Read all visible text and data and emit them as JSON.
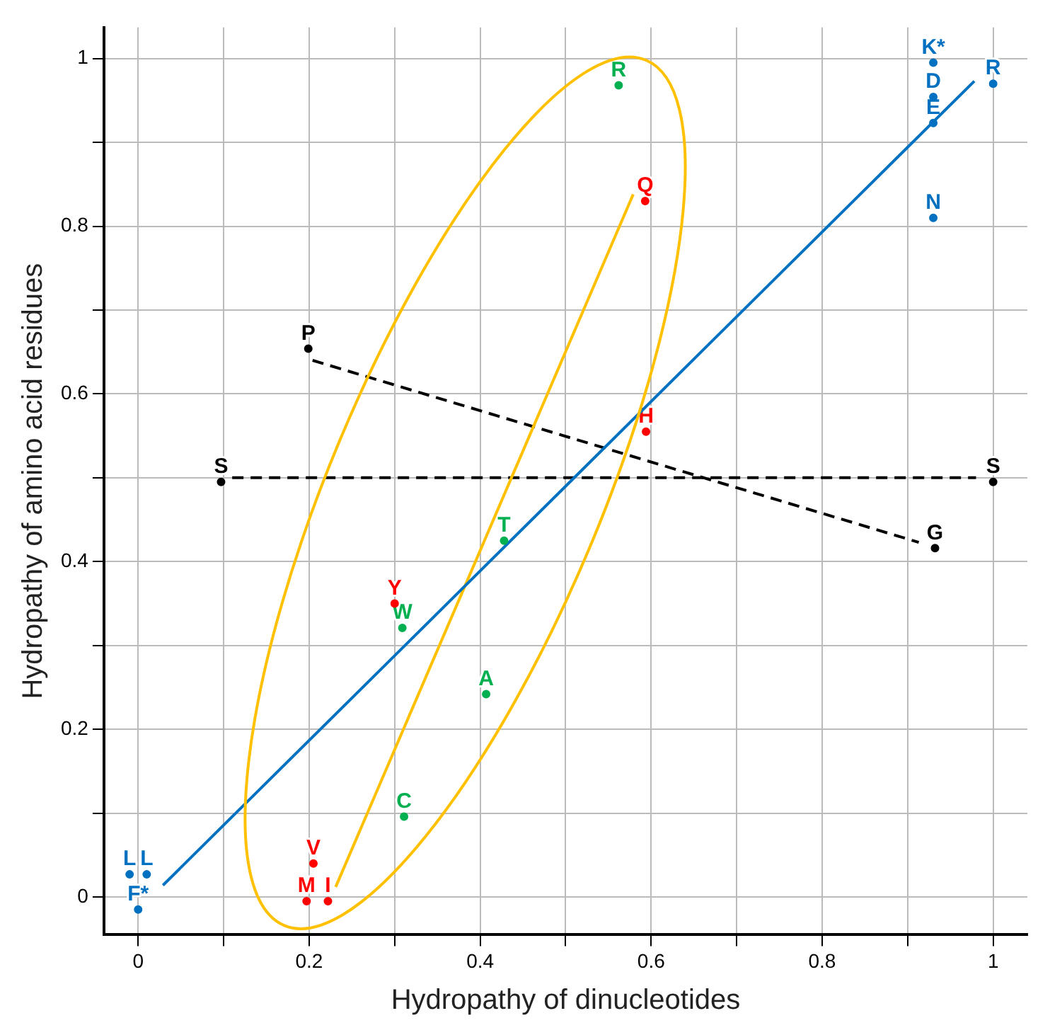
{
  "chart_data": {
    "type": "scatter",
    "xlabel": "Hydropathy of dinucleotides",
    "ylabel": "Hydropathy of amino acid residues",
    "xlim": [
      -0.04,
      1.04
    ],
    "ylim": [
      -0.045,
      1.037
    ],
    "xticks": [
      0,
      {
        "value": 0.1,
        "label": null
      },
      0.2,
      {
        "value": 0.3,
        "label": null
      },
      0.4,
      {
        "value": 0.5,
        "label": null
      },
      0.6,
      {
        "value": 0.7,
        "label": null
      },
      0.8,
      {
        "value": 0.9,
        "label": null
      },
      1
    ],
    "yticks": [
      0,
      {
        "value": 0.1,
        "label": null
      },
      0.2,
      {
        "value": 0.3,
        "label": null
      },
      0.4,
      {
        "value": 0.5,
        "label": null
      },
      0.6,
      {
        "value": 0.7,
        "label": null
      },
      0.8,
      {
        "value": 0.9,
        "label": null
      },
      1
    ],
    "grid": true,
    "legend": false,
    "marker": "circle",
    "series": [
      {
        "type": "scatter",
        "color": "#0070c0",
        "x": [
          0.93,
          0.93,
          0.93,
          1.0,
          0.93,
          -0.01,
          0.01,
          0.0
        ],
        "values": [
          0.995,
          0.954,
          0.923,
          0.97,
          0.81,
          0.027,
          0.027,
          -0.015
        ],
        "value_labels": [
          "K*",
          "D",
          "E",
          "R",
          "N",
          "L",
          "L",
          "F*"
        ]
      },
      {
        "type": "scatter",
        "color": "#ff0000",
        "x": [
          0.593,
          0.594,
          0.3,
          0.205,
          0.197,
          0.222
        ],
        "values": [
          0.83,
          0.555,
          0.35,
          0.04,
          -0.005,
          -0.005
        ],
        "value_labels": [
          "Q",
          "H",
          "Y",
          "V",
          "M",
          "I"
        ]
      },
      {
        "type": "scatter",
        "color": "#00b050",
        "x": [
          0.562,
          0.428,
          0.309,
          0.407,
          0.311
        ],
        "values": [
          0.968,
          0.425,
          0.321,
          0.242,
          0.096
        ],
        "value_labels": [
          "R",
          "T",
          "W",
          "A",
          "C"
        ]
      },
      {
        "type": "scatter",
        "color": "#000000",
        "x": [
          0.199,
          0.932,
          0.097,
          1.0
        ],
        "values": [
          0.654,
          0.416,
          0.495,
          0.495
        ],
        "value_labels": [
          "P",
          "G",
          "S",
          "S"
        ]
      },
      {
        "type": "line",
        "color": "#0070c0",
        "x": [
          0.029,
          0.978
        ],
        "values": [
          0.014,
          0.973
        ],
        "line_style": "solid",
        "marker": "none"
      },
      {
        "type": "line",
        "color": "#ffc000",
        "x": [
          0.231,
          0.579
        ],
        "values": [
          0.012,
          0.838
        ],
        "line_style": "solid",
        "marker": "none"
      },
      {
        "type": "line",
        "color": "#000000",
        "x": [
          0.204,
          0.913
        ],
        "values": [
          0.64,
          0.423
        ],
        "line_style": "dashed",
        "marker": "none"
      },
      {
        "type": "line",
        "color": "#000000",
        "x": [
          0.11,
          0.98
        ],
        "values": [
          0.5,
          0.5
        ],
        "line_style": "dashed",
        "marker": "none"
      }
    ]
  }
}
